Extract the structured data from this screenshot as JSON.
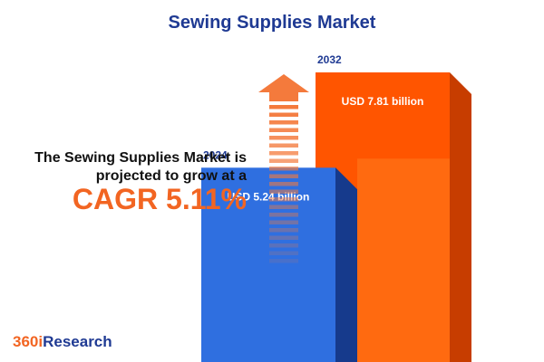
{
  "header": {
    "title": "Sewing Supplies Market"
  },
  "tagline": {
    "text": "The Sewing Supplies Market is projected to grow at a"
  },
  "cagr": {
    "text": "CAGR 5.11%"
  },
  "brand": {
    "prefix": "360i",
    "name": "Research"
  },
  "colors": {
    "bar_2024": "#2f6fe0",
    "bar_2024_side": "#163a8c",
    "bar_2032": "#ff5500",
    "bar_2032_side": "#c73d00",
    "bar_2032_overlap": "#ff6a10",
    "arrow": "#f47a3c",
    "title": "#1f3a93"
  },
  "chart_data": {
    "type": "bar",
    "categories": [
      "2024",
      "2032"
    ],
    "values": [
      5.24,
      7.81
    ],
    "value_labels": [
      "USD 5.24 billion",
      "USD 7.81 billion"
    ],
    "unit": "USD billion",
    "title": "Sewing Supplies Market",
    "xlabel": "",
    "ylabel": ""
  }
}
